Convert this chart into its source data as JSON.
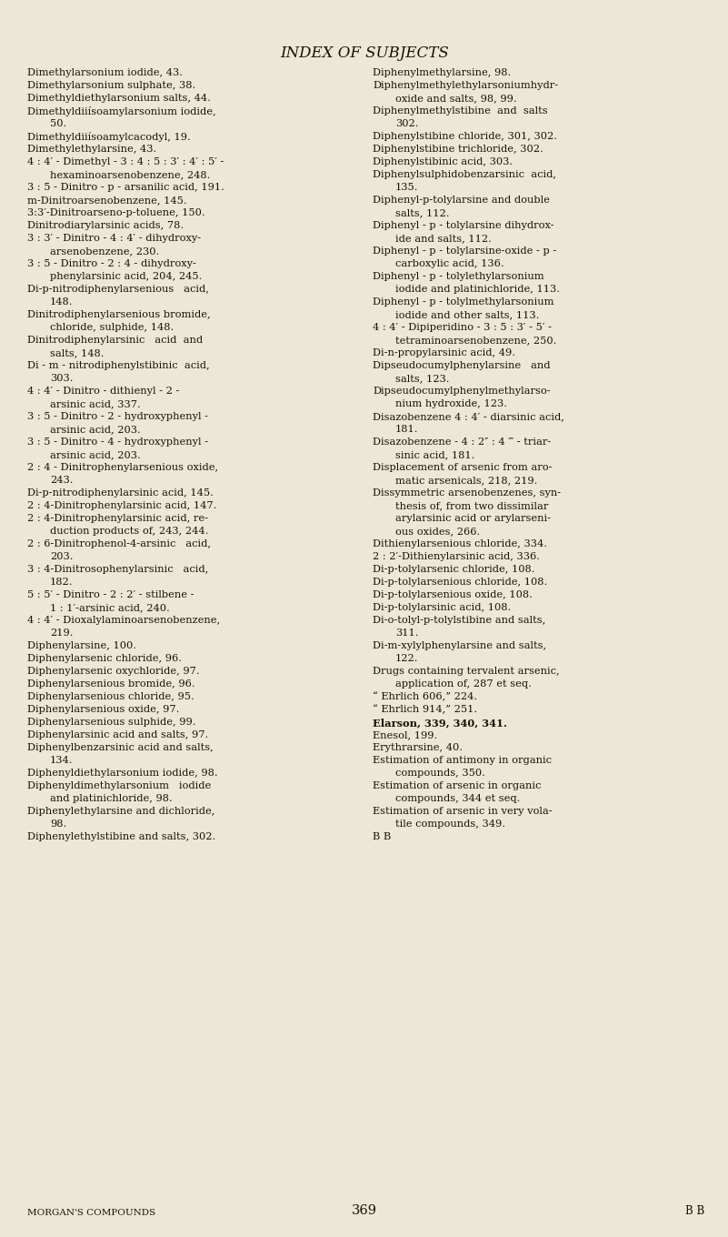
{
  "bg_color": "#ede8d5",
  "text_color": "#1a1008",
  "title": "INDEX OF SUBJECTS",
  "title_fontsize": 12.0,
  "body_fontsize": 8.2,
  "footer_left": "MORGAN'S COMPOUNDS",
  "footer_center": "369",
  "footer_right": "B B",
  "left_lines": [
    [
      "Dimethylarsonium iodide, 43.",
      0
    ],
    [
      "Dimethylarsonium sulphate, 38.",
      0
    ],
    [
      "Dimethyldiethylarsonium salts, 44.",
      0
    ],
    [
      "Dimethyldiiísoamylarsonium iodide,",
      0
    ],
    [
      "50.",
      1
    ],
    [
      "Dimethyldiiísoamylcacodyl, 19.",
      0
    ],
    [
      "Dimethylethylarsine, 43.",
      0
    ],
    [
      "4 : 4′ - Dimethyl - 3 : 4 : 5 : 3′ : 4′ : 5′ -",
      0
    ],
    [
      "hexaminoarsenobenzene, 248.",
      1
    ],
    [
      "3 : 5 - Dinitro - p - arsanilic acid, 191.",
      0
    ],
    [
      "m-Dinitroarsenobenzene, 145.",
      0
    ],
    [
      "3:3′-Dinitroarseno-p-toluene, 150.",
      0
    ],
    [
      "Dinitrodiarylarsinic acids, 78.",
      0
    ],
    [
      "3 : 3′ - Dinitro - 4 : 4′ - dihydroxy-",
      0
    ],
    [
      "arsenobenzene, 230.",
      1
    ],
    [
      "3 : 5 - Dinitro - 2 : 4 - dihydroxy-",
      0
    ],
    [
      "phenylarsinic acid, 204, 245.",
      1
    ],
    [
      "Di-p-nitrodiphenylarsenious   acid,",
      0
    ],
    [
      "148.",
      1
    ],
    [
      "Dinitrodiphenylarsenious bromide,",
      0
    ],
    [
      "chloride, sulphide, 148.",
      1
    ],
    [
      "Dinitrodiphenylarsinic   acid  and",
      0
    ],
    [
      "salts, 148.",
      1
    ],
    [
      "Di - m - nitrodiphenylstibinic  acid,",
      0
    ],
    [
      "303.",
      1
    ],
    [
      "4 : 4′ - Dinitro - dithienyl - 2 -",
      0
    ],
    [
      "arsinic acid, 337.",
      1
    ],
    [
      "3 : 5 - Dinitro - 2 - hydroxyphenyl -",
      0
    ],
    [
      "arsinic acid, 203.",
      1
    ],
    [
      "3 : 5 - Dinitro - 4 - hydroxyphenyl -",
      0
    ],
    [
      "arsinic acid, 203.",
      1
    ],
    [
      "2 : 4 - Dinitrophenylarsenious oxide,",
      0
    ],
    [
      "243.",
      1
    ],
    [
      "Di-p-nitrodiphenylarsinic acid, 145.",
      0
    ],
    [
      "2 : 4-Dinitrophenylarsinic acid, 147.",
      0
    ],
    [
      "2 : 4-Dinitrophenylarsinic acid, re-",
      0
    ],
    [
      "duction products of, 243, 244.",
      1
    ],
    [
      "2 : 6-Dinitrophenol-4-arsinic   acid,",
      0
    ],
    [
      "203.",
      1
    ],
    [
      "3 : 4-Dinitrosophenylarsinic   acid,",
      0
    ],
    [
      "182.",
      1
    ],
    [
      "5 : 5′ - Dinitro - 2 : 2′ - stilbene -",
      0
    ],
    [
      "1 : 1′-arsinic acid, 240.",
      1
    ],
    [
      "4 : 4′ - Dioxalylaminoarsenobenzene,",
      0
    ],
    [
      "219.",
      1
    ],
    [
      "Diphenylarsine, 100.",
      0
    ],
    [
      "Diphenylarsenic chloride, 96.",
      0
    ],
    [
      "Diphenylarsenic oxychloride, 97.",
      0
    ],
    [
      "Diphenylarsenious bromide, 96.",
      0
    ],
    [
      "Diphenylarsenious chloride, 95.",
      0
    ],
    [
      "Diphenylarsenious oxide, 97.",
      0
    ],
    [
      "Diphenylarsenious sulphide, 99.",
      0
    ],
    [
      "Diphenylarsinic acid and salts, 97.",
      0
    ],
    [
      "Diphenylbenzarsinic acid and salts,",
      0
    ],
    [
      "134.",
      1
    ],
    [
      "Diphenyldiethylarsonium iodide, 98.",
      0
    ],
    [
      "Diphenyldimethylarsonium   iodide",
      0
    ],
    [
      "and platinichloride, 98.",
      1
    ],
    [
      "Diphenylethylarsine and dichloride,",
      0
    ],
    [
      "98.",
      1
    ],
    [
      "Diphenylethylstibine and salts, 302.",
      0
    ]
  ],
  "right_lines": [
    [
      "Diphenylmethylarsine, 98.",
      0
    ],
    [
      "Diphenylmethylethylarsoniumhydr-",
      0
    ],
    [
      "oxide and salts, 98, 99.",
      1
    ],
    [
      "Diphenylmethylstibine  and  salts",
      0
    ],
    [
      "302.",
      1
    ],
    [
      "Diphenylstibine chloride, 301, 302.",
      0
    ],
    [
      "Diphenylstibine trichloride, 302.",
      0
    ],
    [
      "Diphenylstibinic acid, 303.",
      0
    ],
    [
      "Diphenylsulphidobenzarsinic  acid,",
      0
    ],
    [
      "135.",
      1
    ],
    [
      "Diphenyl-p-tolylarsine and double",
      0
    ],
    [
      "salts, 112.",
      1
    ],
    [
      "Diphenyl - p - tolylarsine dihydrox-",
      0
    ],
    [
      "ide and salts, 112.",
      1
    ],
    [
      "Diphenyl - p - tolylarsine-oxide - p -",
      0
    ],
    [
      "carboxylic acid, 136.",
      1
    ],
    [
      "Diphenyl - p - tolylethylarsonium",
      0
    ],
    [
      "iodide and platinichloride, 113.",
      1
    ],
    [
      "Diphenyl - p - tolylmethylarsonium",
      0
    ],
    [
      "iodide and other salts, 113.",
      1
    ],
    [
      "4 : 4′ - Dipiperidino - 3 : 5 : 3′ - 5′ -",
      0
    ],
    [
      "tetraminoarsenobenzene, 250.",
      1
    ],
    [
      "Di-n-propylarsinic acid, 49.",
      0
    ],
    [
      "Dipseudocumylphenylarsine   and",
      0
    ],
    [
      "salts, 123.",
      1
    ],
    [
      "Dipseudocumylphenylmethylarso-",
      0
    ],
    [
      "nium hydroxide, 123.",
      1
    ],
    [
      "Disazobenzene 4 : 4′ - diarsinic acid,",
      0
    ],
    [
      "181.",
      1
    ],
    [
      "Disazobenzene - 4 : 2″ : 4 ‴ - triar-",
      0
    ],
    [
      "sinic acid, 181.",
      1
    ],
    [
      "Displacement of arsenic from aro-",
      0
    ],
    [
      "matic arsenicals, 218, 219.",
      1
    ],
    [
      "Dissymmetric arsenobenzenes, syn-",
      0
    ],
    [
      "thesis of, from two dissimilar",
      1
    ],
    [
      "arylarsinic acid or arylarseni-",
      1
    ],
    [
      "ous oxides, 266.",
      1
    ],
    [
      "Dithienylarsenious chloride, 334.",
      0
    ],
    [
      "2 : 2′-Dithienylarsinic acid, 336.",
      0
    ],
    [
      "Di-p-tolylarsenic chloride, 108.",
      0
    ],
    [
      "Di-p-tolylarsenious chloride, 108.",
      0
    ],
    [
      "Di-p-tolylarsenious oxide, 108.",
      0
    ],
    [
      "Di-p-tolylarsinic acid, 108.",
      0
    ],
    [
      "Di-o-tolyl-p-tolylstibine and salts,",
      0
    ],
    [
      "311.",
      1
    ],
    [
      "Di-m-xylylphenylarsine and salts,",
      0
    ],
    [
      "122.",
      1
    ],
    [
      "Drugs containing tervalent arsenic,",
      0
    ],
    [
      "application of, 287 et seq.",
      1
    ],
    [
      "“ Ehrlich 606,” 224.",
      0
    ],
    [
      "“ Ehrlich 914,” 251.",
      0
    ],
    [
      "Elarson, 339, 340, 341.",
      2
    ],
    [
      "Enesol, 199.",
      0
    ],
    [
      "Erythrarsine, 40.",
      0
    ],
    [
      "Estimation of antimony in organic",
      0
    ],
    [
      "compounds, 350.",
      1
    ],
    [
      "Estimation of arsenic in organic",
      0
    ],
    [
      "compounds, 344 et seq.",
      1
    ],
    [
      "Estimation of arsenic in very vola-",
      0
    ],
    [
      "tile compounds, 349.",
      1
    ],
    [
      "B B",
      0
    ]
  ]
}
